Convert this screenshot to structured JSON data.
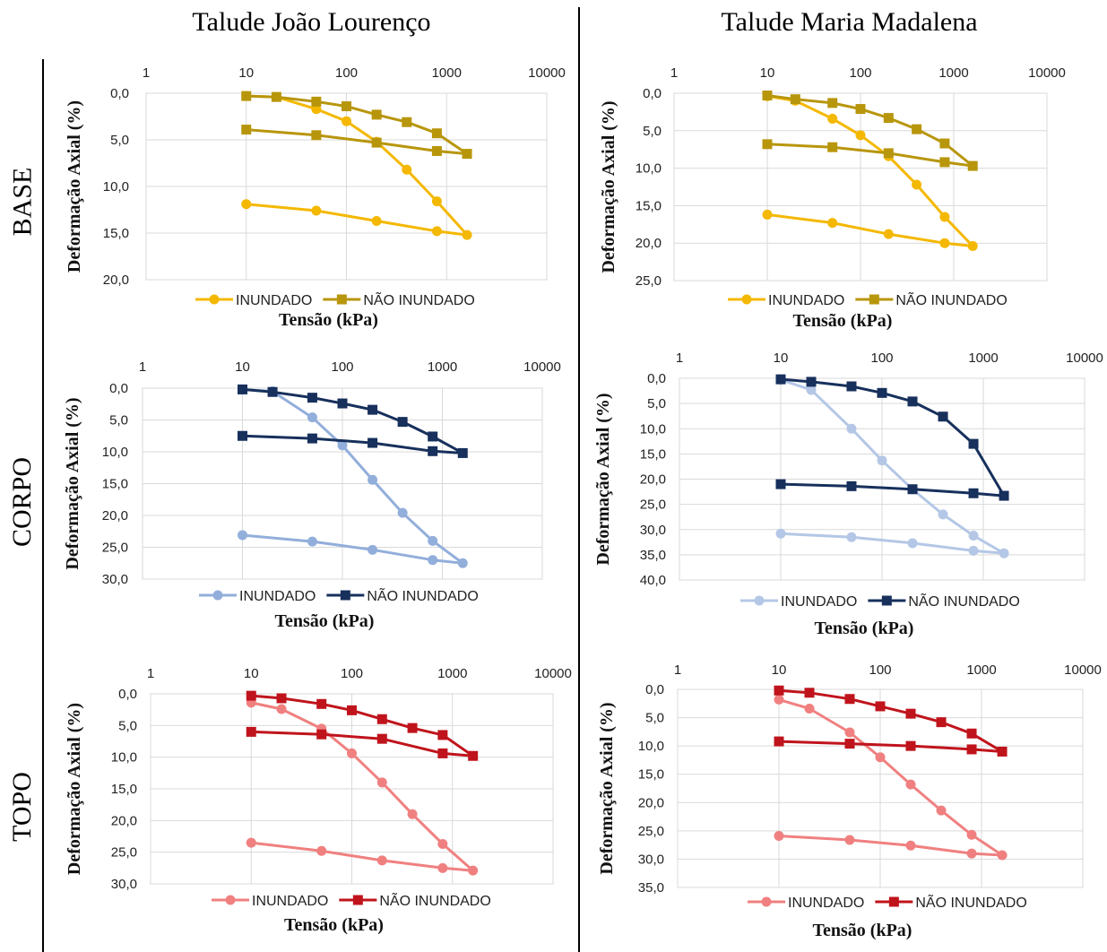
{
  "column_titles": [
    "Talude João Lourenço",
    "Talude Maria Madalena"
  ],
  "row_labels": [
    "BASE",
    "CORPO",
    "TOPO"
  ],
  "chart_data": [
    {
      "type": "line",
      "row": "BASE",
      "column": "Talude João Lourenço",
      "xlabel": "Tensão (kPa)",
      "ylabel": "Deformação Axial (%)",
      "xscale": "log",
      "xlim": [
        1,
        10000
      ],
      "ylim": [
        0,
        20
      ],
      "y_inverted": true,
      "x_ticks": [
        "1",
        "10",
        "100",
        "1000",
        "10000"
      ],
      "y_ticks": [
        "0,0",
        "5,0",
        "10,0",
        "15,0",
        "20,0"
      ],
      "grid": true,
      "legend": "bottom",
      "series": [
        {
          "name": "INUNDADO",
          "color": "#F4B800",
          "marker": "circle",
          "points": [
            [
              10,
              0.3
            ],
            [
              20,
              0.4
            ],
            [
              50,
              1.7
            ],
            [
              100,
              3.0
            ],
            [
              200,
              5.2
            ],
            [
              400,
              8.2
            ],
            [
              800,
              11.6
            ],
            [
              1600,
              15.2
            ],
            [
              800,
              14.8
            ],
            [
              200,
              13.7
            ],
            [
              50,
              12.6
            ],
            [
              10,
              11.9
            ]
          ]
        },
        {
          "name": "NÃO INUNDADO",
          "color": "#B8960C",
          "marker": "square",
          "points": [
            [
              10,
              0.3
            ],
            [
              20,
              0.4
            ],
            [
              50,
              0.9
            ],
            [
              100,
              1.4
            ],
            [
              200,
              2.3
            ],
            [
              400,
              3.1
            ],
            [
              800,
              4.3
            ],
            [
              1600,
              6.5
            ],
            [
              800,
              6.2
            ],
            [
              200,
              5.3
            ],
            [
              50,
              4.5
            ],
            [
              10,
              3.9
            ]
          ]
        }
      ]
    },
    {
      "type": "line",
      "row": "BASE",
      "column": "Talude Maria Madalena",
      "xlabel": "Tensão (kPa)",
      "ylabel": "Deformação Axial (%)",
      "xscale": "log",
      "xlim": [
        1,
        10000
      ],
      "ylim": [
        0,
        25
      ],
      "y_inverted": true,
      "x_ticks": [
        "1",
        "10",
        "100",
        "1000",
        "10000"
      ],
      "y_ticks": [
        "0,0",
        "5,0",
        "10,0",
        "15,0",
        "20,0",
        "25,0"
      ],
      "grid": true,
      "legend": "bottom",
      "series": [
        {
          "name": "INUNDADO",
          "color": "#F4B800",
          "marker": "circle",
          "points": [
            [
              10,
              0.4
            ],
            [
              20,
              1.0
            ],
            [
              50,
              3.4
            ],
            [
              100,
              5.6
            ],
            [
              200,
              8.4
            ],
            [
              400,
              12.2
            ],
            [
              800,
              16.5
            ],
            [
              1600,
              20.4
            ],
            [
              800,
              20.0
            ],
            [
              200,
              18.8
            ],
            [
              50,
              17.3
            ],
            [
              10,
              16.2
            ]
          ]
        },
        {
          "name": "NÃO INUNDADO",
          "color": "#B8960C",
          "marker": "square",
          "points": [
            [
              10,
              0.3
            ],
            [
              20,
              0.8
            ],
            [
              50,
              1.3
            ],
            [
              100,
              2.1
            ],
            [
              200,
              3.3
            ],
            [
              400,
              4.8
            ],
            [
              800,
              6.7
            ],
            [
              1600,
              9.7
            ],
            [
              800,
              9.2
            ],
            [
              200,
              8.0
            ],
            [
              50,
              7.2
            ],
            [
              10,
              6.8
            ]
          ]
        }
      ]
    },
    {
      "type": "line",
      "row": "CORPO",
      "column": "Talude João Lourenço",
      "xlabel": "Tensão (kPa)",
      "ylabel": "Deformação Axial (%)",
      "xscale": "log",
      "xlim": [
        1,
        10000
      ],
      "ylim": [
        0,
        30
      ],
      "y_inverted": true,
      "x_ticks": [
        "1",
        "10",
        "100",
        "1000",
        "10000"
      ],
      "y_ticks": [
        "0,0",
        "5,0",
        "10,0",
        "15,0",
        "20,0",
        "25,0",
        "30,0"
      ],
      "grid": true,
      "legend": "bottom",
      "series": [
        {
          "name": "INUNDADO",
          "color": "#92AEDB",
          "marker": "circle",
          "points": [
            [
              10,
              0.2
            ],
            [
              20,
              0.5
            ],
            [
              50,
              4.6
            ],
            [
              100,
              9.0
            ],
            [
              200,
              14.4
            ],
            [
              400,
              19.6
            ],
            [
              800,
              24.0
            ],
            [
              1600,
              27.5
            ],
            [
              800,
              27.0
            ],
            [
              200,
              25.4
            ],
            [
              50,
              24.1
            ],
            [
              10,
              23.1
            ]
          ]
        },
        {
          "name": "NÃO INUNDADO",
          "color": "#17305C",
          "marker": "square",
          "points": [
            [
              10,
              0.2
            ],
            [
              20,
              0.6
            ],
            [
              50,
              1.5
            ],
            [
              100,
              2.4
            ],
            [
              200,
              3.4
            ],
            [
              400,
              5.3
            ],
            [
              800,
              7.6
            ],
            [
              1600,
              10.2
            ],
            [
              800,
              9.9
            ],
            [
              200,
              8.6
            ],
            [
              50,
              7.9
            ],
            [
              10,
              7.5
            ]
          ]
        }
      ]
    },
    {
      "type": "line",
      "row": "CORPO",
      "column": "Talude Maria Madalena",
      "xlabel": "Tensão (kPa)",
      "ylabel": "Deformação Axial (%)",
      "xscale": "log",
      "xlim": [
        1,
        10000
      ],
      "ylim": [
        0,
        40
      ],
      "y_inverted": true,
      "x_ticks": [
        "1",
        "10",
        "100",
        "1000",
        "10000"
      ],
      "y_ticks": [
        "0,0",
        "5,0",
        "10,0",
        "15,0",
        "20,0",
        "25,0",
        "30,0",
        "35,0",
        "40,0"
      ],
      "grid": true,
      "legend": "bottom",
      "series": [
        {
          "name": "INUNDADO",
          "color": "#B4C7E6",
          "marker": "circle",
          "points": [
            [
              10,
              0.3
            ],
            [
              20,
              2.3
            ],
            [
              50,
              10.0
            ],
            [
              100,
              16.3
            ],
            [
              200,
              22.0
            ],
            [
              400,
              27.0
            ],
            [
              800,
              31.2
            ],
            [
              1600,
              34.7
            ],
            [
              800,
              34.2
            ],
            [
              200,
              32.7
            ],
            [
              50,
              31.5
            ],
            [
              10,
              30.8
            ]
          ]
        },
        {
          "name": "NÃO INUNDADO",
          "color": "#17305C",
          "marker": "square",
          "points": [
            [
              10,
              0.2
            ],
            [
              20,
              0.7
            ],
            [
              50,
              1.6
            ],
            [
              100,
              2.9
            ],
            [
              200,
              4.6
            ],
            [
              400,
              7.6
            ],
            [
              800,
              13.0
            ],
            [
              1600,
              23.3
            ],
            [
              800,
              22.8
            ],
            [
              200,
              22.0
            ],
            [
              50,
              21.4
            ],
            [
              10,
              21.0
            ]
          ]
        }
      ]
    },
    {
      "type": "line",
      "row": "TOPO",
      "column": "Talude João Lourenço",
      "xlabel": "Tensão (kPa)",
      "ylabel": "Deformação Axial (%)",
      "xscale": "log",
      "xlim": [
        1,
        10000
      ],
      "ylim": [
        0,
        30
      ],
      "y_inverted": true,
      "x_ticks": [
        "1",
        "10",
        "100",
        "1000",
        "10000"
      ],
      "y_ticks": [
        "0,0",
        "5,0",
        "10,0",
        "15,0",
        "20,0",
        "25,0",
        "30,0"
      ],
      "grid": true,
      "legend": "bottom",
      "series": [
        {
          "name": "INUNDADO",
          "color": "#F08080",
          "marker": "circle",
          "points": [
            [
              10,
              1.4
            ],
            [
              20,
              2.4
            ],
            [
              50,
              5.5
            ],
            [
              100,
              9.4
            ],
            [
              200,
              14.0
            ],
            [
              400,
              19.0
            ],
            [
              800,
              23.7
            ],
            [
              1600,
              27.9
            ],
            [
              800,
              27.5
            ],
            [
              200,
              26.3
            ],
            [
              50,
              24.8
            ],
            [
              10,
              23.5
            ]
          ]
        },
        {
          "name": "NÃO INUNDADO",
          "color": "#C0141C",
          "marker": "square",
          "points": [
            [
              10,
              0.3
            ],
            [
              20,
              0.7
            ],
            [
              50,
              1.6
            ],
            [
              100,
              2.6
            ],
            [
              200,
              4.0
            ],
            [
              400,
              5.4
            ],
            [
              800,
              6.5
            ],
            [
              1600,
              9.8
            ],
            [
              800,
              9.4
            ],
            [
              200,
              7.1
            ],
            [
              50,
              6.4
            ],
            [
              10,
              6.0
            ]
          ]
        }
      ]
    },
    {
      "type": "line",
      "row": "TOPO",
      "column": "Talude Maria Madalena",
      "xlabel": "Tensão (kPa)",
      "ylabel": "Deformação Axial (%)",
      "xscale": "log",
      "xlim": [
        1,
        10000
      ],
      "ylim": [
        0,
        35
      ],
      "y_inverted": true,
      "x_ticks": [
        "1",
        "10",
        "100",
        "1000",
        "10000"
      ],
      "y_ticks": [
        "0,0",
        "5,0",
        "10,0",
        "15,0",
        "20,0",
        "25,0",
        "30,0",
        "35,0"
      ],
      "grid": true,
      "legend": "bottom",
      "series": [
        {
          "name": "INUNDADO",
          "color": "#F08080",
          "marker": "circle",
          "points": [
            [
              10,
              1.8
            ],
            [
              20,
              3.4
            ],
            [
              50,
              7.6
            ],
            [
              100,
              12.0
            ],
            [
              200,
              16.8
            ],
            [
              400,
              21.4
            ],
            [
              800,
              25.7
            ],
            [
              1600,
              29.3
            ],
            [
              800,
              29.0
            ],
            [
              200,
              27.6
            ],
            [
              50,
              26.6
            ],
            [
              10,
              25.9
            ]
          ]
        },
        {
          "name": "NÃO INUNDADO",
          "color": "#C0141C",
          "marker": "square",
          "points": [
            [
              10,
              0.2
            ],
            [
              20,
              0.6
            ],
            [
              50,
              1.7
            ],
            [
              100,
              3.0
            ],
            [
              200,
              4.3
            ],
            [
              400,
              5.8
            ],
            [
              800,
              7.8
            ],
            [
              1600,
              11.0
            ],
            [
              800,
              10.6
            ],
            [
              200,
              10.0
            ],
            [
              50,
              9.6
            ],
            [
              10,
              9.2
            ]
          ]
        }
      ]
    }
  ]
}
